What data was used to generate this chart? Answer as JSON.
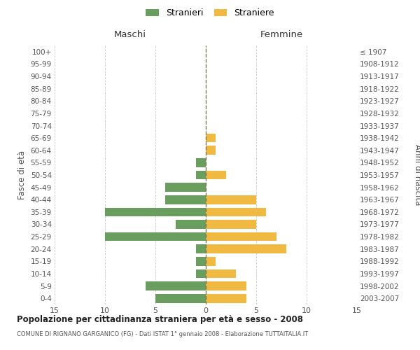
{
  "age_groups": [
    "100+",
    "95-99",
    "90-94",
    "85-89",
    "80-84",
    "75-79",
    "70-74",
    "65-69",
    "60-64",
    "55-59",
    "50-54",
    "45-49",
    "40-44",
    "35-39",
    "30-34",
    "25-29",
    "20-24",
    "15-19",
    "10-14",
    "5-9",
    "0-4"
  ],
  "birth_years": [
    "≤ 1907",
    "1908-1912",
    "1913-1917",
    "1918-1922",
    "1923-1927",
    "1928-1932",
    "1933-1937",
    "1938-1942",
    "1943-1947",
    "1948-1952",
    "1953-1957",
    "1958-1962",
    "1963-1967",
    "1968-1972",
    "1973-1977",
    "1978-1982",
    "1983-1987",
    "1988-1992",
    "1993-1997",
    "1998-2002",
    "2003-2007"
  ],
  "males": [
    0,
    0,
    0,
    0,
    0,
    0,
    0,
    0,
    0,
    1,
    1,
    4,
    4,
    10,
    3,
    10,
    1,
    1,
    1,
    6,
    5
  ],
  "females": [
    0,
    0,
    0,
    0,
    0,
    0,
    0,
    1,
    1,
    0,
    2,
    0,
    5,
    6,
    5,
    7,
    8,
    1,
    3,
    4,
    4
  ],
  "male_color": "#6a9e5e",
  "female_color": "#f0b942",
  "grid_color": "#cccccc",
  "center_line_color": "#7a7a50",
  "title": "Popolazione per cittadinanza straniera per età e sesso - 2008",
  "subtitle": "COMUNE DI RIGNANO GARGANICO (FG) - Dati ISTAT 1° gennaio 2008 - Elaborazione TUTTAITALIA.IT",
  "xlabel_left": "Maschi",
  "xlabel_right": "Femmine",
  "ylabel_left": "Fasce di età",
  "ylabel_right": "Anni di nascita",
  "legend_male": "Stranieri",
  "legend_female": "Straniere",
  "xlim": 15,
  "background_color": "#ffffff"
}
